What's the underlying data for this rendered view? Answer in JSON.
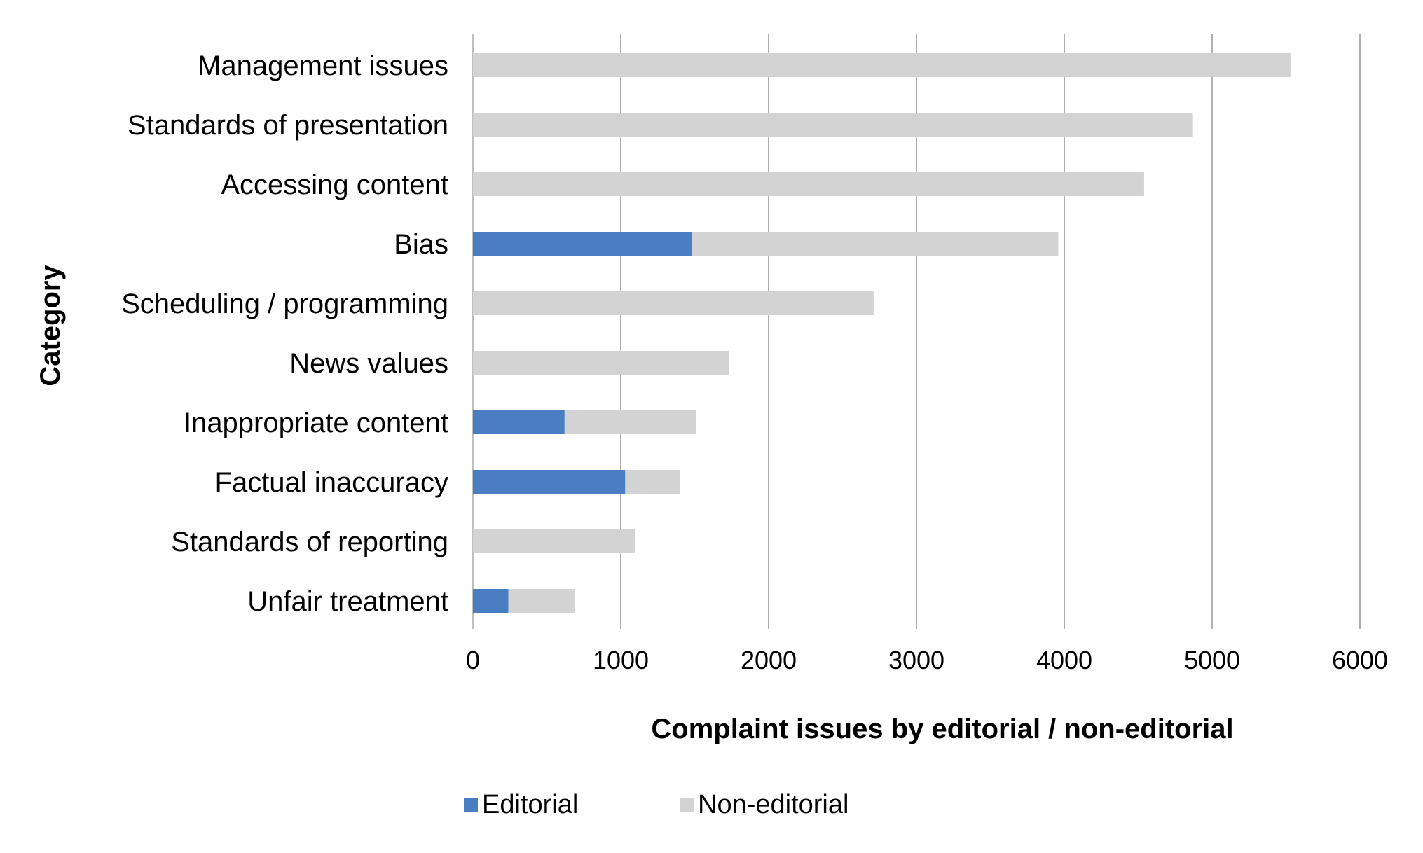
{
  "chart_data": {
    "type": "bar",
    "orientation": "horizontal",
    "stacked": true,
    "title": "",
    "xlabel": "Complaint issues by editorial / non-editorial",
    "ylabel": "Category",
    "xlim": [
      0,
      6000
    ],
    "xticks": [
      "0",
      "1000",
      "2000",
      "3000",
      "4000",
      "5000",
      "6000"
    ],
    "grid": true,
    "legend_position": "bottom",
    "categories": [
      "Management issues",
      "Standards of presentation",
      "Accessing content",
      "Bias",
      "Scheduling / programming",
      "News values",
      "Inappropriate content",
      "Factual inaccuracy",
      "Standards of reporting",
      "Unfair treatment"
    ],
    "series": [
      {
        "name": "Editorial",
        "color": "#4A7EC2",
        "values": [
          0,
          0,
          0,
          1480,
          0,
          0,
          620,
          1030,
          0,
          240
        ]
      },
      {
        "name": "Non-editorial",
        "color": "#D3D3D3",
        "values": [
          5530,
          4870,
          4540,
          2480,
          2710,
          1730,
          890,
          370,
          1100,
          450
        ]
      }
    ]
  }
}
